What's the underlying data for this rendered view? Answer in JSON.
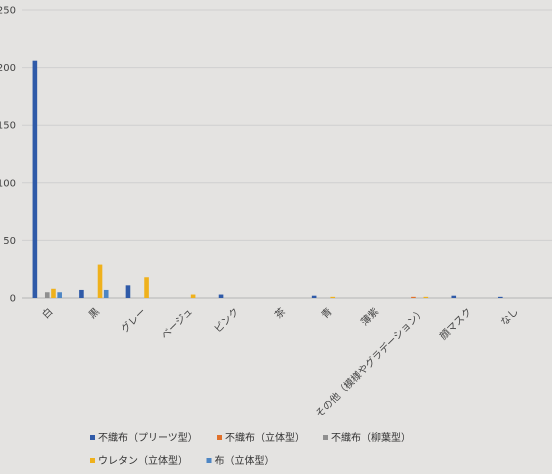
{
  "chart_data": {
    "type": "bar",
    "title": "",
    "xlabel": "",
    "ylabel": "",
    "ylim": [
      0,
      250
    ],
    "y_ticks": [
      "0",
      "50",
      "100",
      "150",
      "200",
      "250"
    ],
    "grid": true,
    "legend_position": "bottom",
    "categories": [
      "白",
      "黒",
      "グレー",
      "ベージュ",
      "ピンク",
      "茶",
      "青",
      "薄紫",
      "その他（模様やグラデーション）",
      "顔マスク",
      "なし"
    ],
    "series": [
      {
        "name": "不織布（プリーツ型）",
        "color": "#2f5aa8",
        "values": [
          206,
          7,
          11,
          0,
          3,
          0,
          2,
          0,
          0,
          2,
          1
        ]
      },
      {
        "name": "不織布（立体型）",
        "color": "#e0702a",
        "values": [
          0,
          0,
          0,
          0,
          0,
          0,
          0,
          0,
          1,
          0,
          0
        ]
      },
      {
        "name": "不織布（柳葉型）",
        "color": "#8f8f8f",
        "values": [
          5,
          0,
          0,
          0,
          0,
          0,
          0,
          0,
          0,
          0,
          0
        ]
      },
      {
        "name": "ウレタン（立体型）",
        "color": "#efb11c",
        "values": [
          8,
          29,
          18,
          3,
          0,
          0,
          1,
          0,
          1,
          0,
          0
        ]
      },
      {
        "name": "布（立体型）",
        "color": "#4e86c4",
        "values": [
          5,
          7,
          0,
          0,
          0,
          0,
          0,
          0,
          0,
          0,
          0
        ]
      }
    ]
  }
}
